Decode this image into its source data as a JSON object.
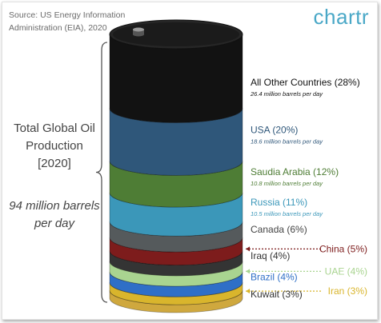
{
  "source": "Source: US Energy Information Administration (EIA), 2020",
  "brand": "chartr",
  "side_title_lines": [
    "Total Global Oil",
    "Production",
    "[2020]"
  ],
  "side_sub_lines": [
    "94 million barrels",
    "per day"
  ],
  "colors": {
    "All Other Countries": "#121212",
    "USA": "#2f577a",
    "Saudia Arabia": "#4e7d35",
    "Russia": "#3b97b9",
    "Canada": "#555a5c",
    "China": "#7d1c1c",
    "Iraq": "#343434",
    "UAE": "#a9d490",
    "Brazil": "#2f6fc7",
    "Iran": "#d9b52c",
    "Kuwait": "#cfa83e"
  },
  "chart_data": {
    "type": "bar",
    "title": "Total Global Oil Production [2020]",
    "subtitle": "94 million barrels per day",
    "unit": "million barrels per day",
    "series": [
      {
        "name": "All Other Countries",
        "label": "All Other Countries (28%)",
        "percent": 28,
        "value_label": "26.4 million barrels per day",
        "value": 26.4,
        "label_color": "#111111",
        "sub_color": "#111111"
      },
      {
        "name": "USA",
        "label": "USA (20%)",
        "percent": 20,
        "value_label": "18.6 million barrels per day",
        "value": 18.6,
        "label_color": "#2f577a",
        "sub_color": "#2f577a"
      },
      {
        "name": "Saudia Arabia",
        "label": "Saudia Arabia (12%)",
        "percent": 12,
        "value_label": "10.8 million barrels per day",
        "value": 10.8,
        "label_color": "#4e7d35",
        "sub_color": "#4e7d35"
      },
      {
        "name": "Russia",
        "label": "Russia (11%)",
        "percent": 11,
        "value_label": "10.5 million barrels per day",
        "value": 10.5,
        "label_color": "#3b97b9",
        "sub_color": "#3b97b9"
      },
      {
        "name": "Canada",
        "label": "Canada (6%)",
        "percent": 6,
        "value_label": "",
        "label_color": "#444444"
      },
      {
        "name": "China",
        "label": "China (5%)",
        "percent": 5,
        "value_label": "",
        "label_color": "#7d1c1c",
        "callout": "right"
      },
      {
        "name": "Iraq",
        "label": "Iraq (4%)",
        "percent": 4,
        "value_label": "",
        "label_color": "#333333"
      },
      {
        "name": "UAE",
        "label": "UAE (4%)",
        "percent": 4,
        "value_label": "",
        "label_color": "#a9d490",
        "callout": "right"
      },
      {
        "name": "Brazil",
        "label": "Brazil (4%)",
        "percent": 4,
        "value_label": "",
        "label_color": "#2f6fc7"
      },
      {
        "name": "Iran",
        "label": "Iran (3%)",
        "percent": 3,
        "value_label": "",
        "label_color": "#d9b52c",
        "callout": "right"
      },
      {
        "name": "Kuwait",
        "label": "Kuwait (3%)",
        "percent": 3,
        "value_label": "",
        "label_color": "#333333"
      }
    ]
  }
}
